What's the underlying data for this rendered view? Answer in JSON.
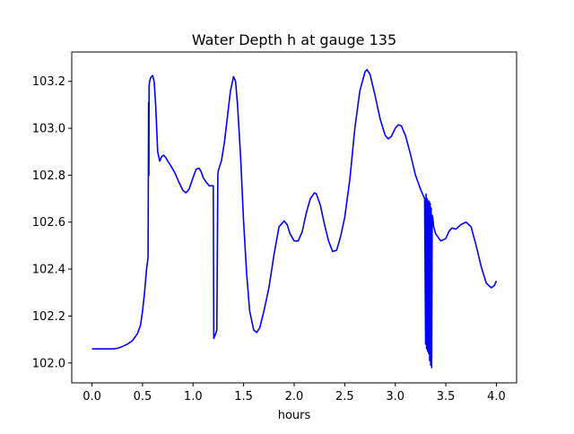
{
  "chart_data": {
    "type": "line",
    "title": "Water Depth h at gauge 135",
    "xlabel": "hours",
    "ylabel": "",
    "xlim": [
      -0.2,
      4.2
    ],
    "ylim": [
      101.915,
      103.325
    ],
    "xticks": [
      0.0,
      0.5,
      1.0,
      1.5,
      2.0,
      2.5,
      3.0,
      3.5,
      4.0
    ],
    "xtick_labels": [
      "0.0",
      "0.5",
      "1.0",
      "1.5",
      "2.0",
      "2.5",
      "3.0",
      "3.5",
      "4.0"
    ],
    "yticks": [
      102.0,
      102.2,
      102.4,
      102.6,
      102.8,
      103.0,
      103.2
    ],
    "ytick_labels": [
      "102.0",
      "102.2",
      "102.4",
      "102.6",
      "102.8",
      "103.0",
      "103.2"
    ],
    "grid": false,
    "series": [
      {
        "color": "#0000ff",
        "x": [
          0.0,
          0.1,
          0.2,
          0.25,
          0.3,
          0.35,
          0.4,
          0.45,
          0.48,
          0.5,
          0.52,
          0.54,
          0.555,
          0.56,
          0.563,
          0.565,
          0.57,
          0.58,
          0.6,
          0.615,
          0.63,
          0.65,
          0.67,
          0.69,
          0.71,
          0.73,
          0.75,
          0.78,
          0.82,
          0.86,
          0.9,
          0.93,
          0.96,
          1.0,
          1.03,
          1.06,
          1.08,
          1.1,
          1.13,
          1.16,
          1.2,
          1.205,
          1.21,
          1.22,
          1.235,
          1.245,
          1.25,
          1.28,
          1.31,
          1.34,
          1.37,
          1.4,
          1.42,
          1.44,
          1.47,
          1.5,
          1.53,
          1.56,
          1.6,
          1.63,
          1.66,
          1.7,
          1.75,
          1.8,
          1.85,
          1.9,
          1.93,
          1.96,
          2.0,
          2.04,
          2.08,
          2.12,
          2.16,
          2.2,
          2.22,
          2.26,
          2.3,
          2.34,
          2.38,
          2.42,
          2.46,
          2.5,
          2.55,
          2.6,
          2.65,
          2.7,
          2.72,
          2.75,
          2.8,
          2.85,
          2.9,
          2.93,
          2.96,
          3.0,
          3.03,
          3.06,
          3.1,
          3.15,
          3.2,
          3.25,
          3.28,
          3.29,
          3.3,
          3.305,
          3.31,
          3.315,
          3.32,
          3.325,
          3.33,
          3.335,
          3.34,
          3.345,
          3.35,
          3.355,
          3.36,
          3.365,
          3.37,
          3.375,
          3.38,
          3.4,
          3.45,
          3.5,
          3.53,
          3.56,
          3.6,
          3.65,
          3.7,
          3.75,
          3.8,
          3.85,
          3.9,
          3.95,
          3.98,
          4.0
        ],
        "values": [
          102.06,
          102.06,
          102.06,
          102.062,
          102.07,
          102.08,
          102.095,
          102.125,
          102.16,
          102.22,
          102.3,
          102.4,
          102.45,
          103.11,
          102.8,
          103.18,
          103.2,
          103.215,
          103.225,
          103.2,
          103.1,
          102.9,
          102.86,
          102.88,
          102.885,
          102.875,
          102.86,
          102.84,
          102.81,
          102.77,
          102.735,
          102.725,
          102.74,
          102.79,
          102.825,
          102.83,
          102.815,
          102.79,
          102.77,
          102.755,
          102.755,
          102.105,
          102.11,
          102.12,
          102.14,
          102.8,
          102.82,
          102.86,
          102.94,
          103.05,
          103.16,
          103.22,
          103.2,
          103.1,
          102.88,
          102.6,
          102.38,
          102.22,
          102.14,
          102.13,
          102.15,
          102.22,
          102.32,
          102.46,
          102.58,
          102.605,
          102.59,
          102.55,
          102.52,
          102.52,
          102.56,
          102.64,
          102.7,
          102.725,
          102.72,
          102.67,
          102.59,
          102.52,
          102.475,
          102.48,
          102.54,
          102.62,
          102.78,
          103.0,
          103.16,
          103.24,
          103.25,
          103.23,
          103.14,
          103.04,
          102.97,
          102.955,
          102.965,
          103.0,
          103.015,
          103.01,
          102.97,
          102.89,
          102.8,
          102.74,
          102.71,
          102.7,
          102.08,
          102.72,
          102.06,
          102.7,
          102.05,
          102.69,
          102.04,
          102.69,
          102.01,
          102.68,
          101.99,
          102.66,
          101.98,
          102.63,
          102.62,
          102.6,
          102.58,
          102.55,
          102.52,
          102.53,
          102.56,
          102.575,
          102.57,
          102.59,
          102.6,
          102.58,
          102.5,
          102.41,
          102.34,
          102.32,
          102.33,
          102.35
        ]
      }
    ]
  }
}
